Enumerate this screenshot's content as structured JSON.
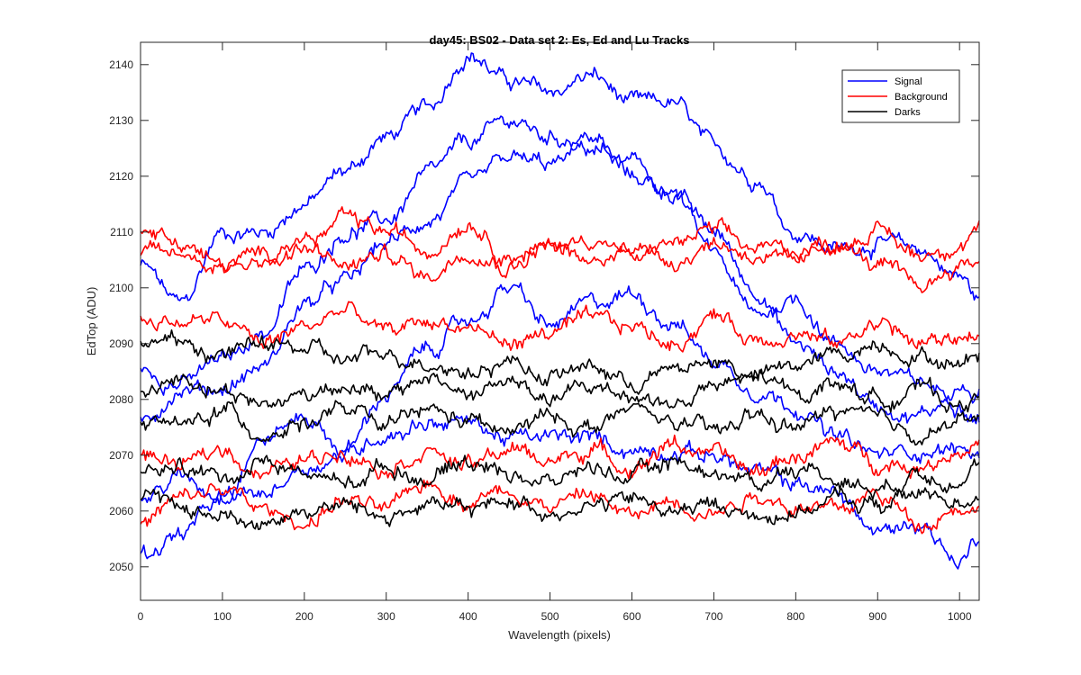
{
  "chart_data": {
    "type": "line",
    "title": "day45: BS02 - Data set 2: Es, Ed and Lu Tracks",
    "xlabel": "Wavelength (pixels)",
    "ylabel": "EdTop (ADU)",
    "xlim": [
      0,
      1024
    ],
    "ylim": [
      2044,
      2144
    ],
    "xticks": [
      0,
      100,
      200,
      300,
      400,
      500,
      600,
      700,
      800,
      900,
      1000
    ],
    "yticks": [
      2050,
      2060,
      2070,
      2080,
      2090,
      2100,
      2110,
      2120,
      2130,
      2140
    ],
    "grid": false,
    "legend_location": "top-right",
    "legend": [
      {
        "label": "Signal",
        "color": "#0000ff"
      },
      {
        "label": "Background",
        "color": "#ff0000"
      },
      {
        "label": "Darks",
        "color": "#000000"
      }
    ],
    "series": [
      {
        "name": "Signal",
        "color": "#0000ff",
        "x": [
          0,
          50,
          100,
          150,
          200,
          250,
          300,
          350,
          400,
          450,
          500,
          550,
          600,
          650,
          700,
          750,
          800,
          850,
          900,
          950,
          1000,
          1024
        ],
        "y": [
          2104,
          2097,
          2110,
          2110,
          2115,
          2121,
          2127,
          2132,
          2142,
          2137,
          2135,
          2138,
          2133,
          2133,
          2125,
          2120,
          2110,
          2107,
          2108,
          2107,
          2102,
          2098
        ]
      },
      {
        "name": "Signal",
        "color": "#0000ff",
        "x": [
          0,
          50,
          100,
          150,
          200,
          250,
          300,
          350,
          400,
          450,
          500,
          550,
          600,
          650,
          700,
          750,
          800,
          850,
          900,
          950,
          1000,
          1024
        ],
        "y": [
          2085,
          2083,
          2087,
          2092,
          2103,
          2110,
          2112,
          2120,
          2126,
          2130,
          2127,
          2127,
          2120,
          2117,
          2110,
          2100,
          2090,
          2085,
          2079,
          2077,
          2082,
          2080
        ]
      },
      {
        "name": "Signal",
        "color": "#0000ff",
        "x": [
          0,
          50,
          100,
          150,
          200,
          250,
          300,
          350,
          400,
          450,
          500,
          550,
          600,
          650,
          700,
          750,
          800,
          850,
          900,
          950,
          1000,
          1024
        ],
        "y": [
          2076,
          2082,
          2082,
          2086,
          2097,
          2101,
          2108,
          2112,
          2118,
          2123,
          2122,
          2125,
          2122,
          2117,
          2106,
          2095,
          2098,
          2090,
          2085,
          2083,
          2080,
          2077
        ]
      },
      {
        "name": "Signal",
        "color": "#0000ff",
        "x": [
          0,
          50,
          100,
          150,
          200,
          250,
          300,
          350,
          400,
          450,
          500,
          550,
          600,
          650,
          700,
          750,
          800,
          850,
          900,
          950,
          1000,
          1024
        ],
        "y": [
          2062,
          2066,
          2063,
          2073,
          2077,
          2071,
          2081,
          2089,
          2094,
          2100,
          2093,
          2097,
          2099,
          2094,
          2087,
          2082,
          2079,
          2073,
          2070,
          2071,
          2071,
          2070
        ]
      },
      {
        "name": "Signal",
        "color": "#0000ff",
        "x": [
          0,
          50,
          100,
          150,
          200,
          250,
          300,
          350,
          400,
          450,
          500,
          550,
          600,
          650,
          700,
          750,
          800,
          850,
          900,
          950,
          1000,
          1024
        ],
        "y": [
          2052,
          2056,
          2062,
          2063,
          2068,
          2070,
          2074,
          2076,
          2076,
          2073,
          2073,
          2073,
          2071,
          2071,
          2070,
          2067,
          2065,
          2063,
          2056,
          2058,
          2051,
          2055
        ]
      },
      {
        "name": "Background",
        "color": "#ff0000",
        "x": [
          0,
          50,
          100,
          150,
          200,
          250,
          300,
          350,
          400,
          450,
          500,
          550,
          600,
          650,
          700,
          750,
          800,
          850,
          900,
          950,
          1000,
          1024
        ],
        "y": [
          2111,
          2108,
          2104,
          2106,
          2107,
          2112,
          2110,
          2107,
          2112,
          2106,
          2107,
          2109,
          2106,
          2108,
          2110,
          2107,
          2107,
          2108,
          2110,
          2106,
          2108,
          2111
        ]
      },
      {
        "name": "Background",
        "color": "#ff0000",
        "x": [
          0,
          50,
          100,
          150,
          200,
          250,
          300,
          350,
          400,
          450,
          500,
          550,
          600,
          650,
          700,
          750,
          800,
          850,
          900,
          950,
          1000,
          1024
        ],
        "y": [
          2106,
          2106,
          2104,
          2105,
          2108,
          2104,
          2106,
          2102,
          2107,
          2104,
          2108,
          2104,
          2107,
          2105,
          2108,
          2106,
          2104,
          2108,
          2104,
          2100,
          2104,
          2105
        ]
      },
      {
        "name": "Background",
        "color": "#ff0000",
        "x": [
          0,
          50,
          100,
          150,
          200,
          250,
          300,
          350,
          400,
          450,
          500,
          550,
          600,
          650,
          700,
          750,
          800,
          850,
          900,
          950,
          1000,
          1024
        ],
        "y": [
          2094,
          2094,
          2094,
          2090,
          2093,
          2096,
          2092,
          2094,
          2093,
          2090,
          2092,
          2094,
          2093,
          2090,
          2095,
          2091,
          2092,
          2090,
          2094,
          2090,
          2091,
          2092
        ]
      },
      {
        "name": "Background",
        "color": "#ff0000",
        "x": [
          0,
          50,
          100,
          150,
          200,
          250,
          300,
          350,
          400,
          450,
          500,
          550,
          600,
          650,
          700,
          750,
          800,
          850,
          900,
          950,
          1000,
          1024
        ],
        "y": [
          2070,
          2068,
          2071,
          2067,
          2069,
          2071,
          2068,
          2071,
          2068,
          2071,
          2069,
          2071,
          2068,
          2072,
          2070,
          2067,
          2070,
          2072,
          2069,
          2068,
          2071,
          2072
        ]
      },
      {
        "name": "Background",
        "color": "#ff0000",
        "x": [
          0,
          50,
          100,
          150,
          200,
          250,
          300,
          350,
          400,
          450,
          500,
          550,
          600,
          650,
          700,
          750,
          800,
          850,
          900,
          950,
          1000,
          1024
        ],
        "y": [
          2058,
          2062,
          2064,
          2060,
          2058,
          2062,
          2060,
          2065,
          2062,
          2064,
          2061,
          2063,
          2059,
          2062,
          2060,
          2063,
          2061,
          2060,
          2063,
          2058,
          2061,
          2060
        ]
      },
      {
        "name": "Darks",
        "color": "#000000",
        "x": [
          0,
          50,
          100,
          150,
          200,
          250,
          300,
          350,
          400,
          450,
          500,
          550,
          600,
          650,
          700,
          750,
          800,
          850,
          900,
          950,
          1000,
          1024
        ],
        "y": [
          2091,
          2090,
          2088,
          2090,
          2089,
          2087,
          2088,
          2087,
          2085,
          2087,
          2084,
          2086,
          2083,
          2085,
          2087,
          2084,
          2086,
          2088,
          2090,
          2088,
          2086,
          2089
        ]
      },
      {
        "name": "Darks",
        "color": "#000000",
        "x": [
          0,
          50,
          100,
          150,
          200,
          250,
          300,
          350,
          400,
          450,
          500,
          550,
          600,
          650,
          700,
          750,
          800,
          850,
          900,
          950,
          1000,
          1024
        ],
        "y": [
          2081,
          2084,
          2082,
          2079,
          2081,
          2083,
          2080,
          2084,
          2081,
          2083,
          2080,
          2082,
          2081,
          2079,
          2082,
          2084,
          2081,
          2083,
          2080,
          2082,
          2079,
          2080
        ]
      },
      {
        "name": "Darks",
        "color": "#000000",
        "x": [
          0,
          50,
          100,
          150,
          200,
          250,
          300,
          350,
          400,
          450,
          500,
          550,
          600,
          650,
          700,
          750,
          800,
          850,
          900,
          950,
          1000,
          1024
        ],
        "y": [
          2077,
          2075,
          2078,
          2074,
          2076,
          2078,
          2075,
          2078,
          2076,
          2074,
          2077,
          2075,
          2078,
          2076,
          2074,
          2077,
          2075,
          2078,
          2076,
          2074,
          2076,
          2077
        ]
      },
      {
        "name": "Darks",
        "color": "#000000",
        "x": [
          0,
          50,
          100,
          150,
          200,
          250,
          300,
          350,
          400,
          450,
          500,
          550,
          600,
          650,
          700,
          750,
          800,
          850,
          900,
          950,
          1000,
          1024
        ],
        "y": [
          2066,
          2068,
          2066,
          2069,
          2067,
          2065,
          2068,
          2066,
          2069,
          2067,
          2065,
          2068,
          2066,
          2069,
          2067,
          2065,
          2068,
          2066,
          2064,
          2067,
          2066,
          2068
        ]
      },
      {
        "name": "Darks",
        "color": "#000000",
        "x": [
          0,
          50,
          100,
          150,
          200,
          250,
          300,
          350,
          400,
          450,
          500,
          550,
          600,
          650,
          700,
          750,
          800,
          850,
          900,
          950,
          1000,
          1024
        ],
        "y": [
          2062,
          2061,
          2059,
          2058,
          2060,
          2061,
          2059,
          2061,
          2060,
          2062,
          2060,
          2061,
          2062,
          2060,
          2061,
          2059,
          2060,
          2062,
          2061,
          2063,
          2062,
          2063
        ]
      }
    ]
  }
}
